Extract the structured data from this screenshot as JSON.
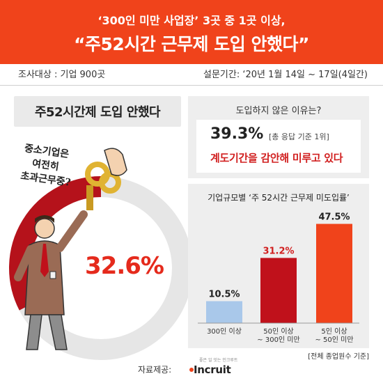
{
  "header": {
    "subtitle": "‘300인 미만 사업장’ 3곳 중 1곳 이상,",
    "title": "“주52시간 근무제 도입 안했다”"
  },
  "meta": {
    "target": "조사대상 : 기업 900곳",
    "period": "설문기간: ‘20년 1월 14일 ~ 17일(4일간)"
  },
  "left": {
    "title": "주52시간제 도입 안했다",
    "handwriting": [
      "중소기업은",
      "여전히",
      "초과근무중?"
    ]
  },
  "reason": {
    "label": "도입하지 않은 이유는?",
    "pct": "39.3%",
    "note": "[총 응답 기준 1위]",
    "text": "계도기간을 감안해 미루고 있다"
  },
  "footnote": "[전체 종업원수 기준]",
  "source": {
    "label": "자료제공:",
    "logo_tag": "좋은 일 잇는 인크루트",
    "logo_word": "Incruit"
  },
  "chart_data": [
    {
      "type": "pie",
      "title": "주52시간제 도입 안했다",
      "values": [
        32.6,
        67.4
      ],
      "value_label": "32.6%",
      "colors": [
        "#b5121b",
        "#e6e6e6"
      ]
    },
    {
      "type": "bar",
      "title": "기업규모별 ‘주 52시간 근무제 미도입률’",
      "categories": [
        [
          "300인 이상"
        ],
        [
          "50인 이상",
          "~ 300인 미만"
        ],
        [
          "5인 이상",
          "~ 50인 미만"
        ]
      ],
      "values": [
        10.5,
        31.2,
        47.5
      ],
      "value_labels": [
        "10.5%",
        "31.2%",
        "47.5%"
      ],
      "value_label_colors": [
        "#222222",
        "#d11f1f",
        "#222222"
      ],
      "colors": [
        "#a9c8ea",
        "#c0111b",
        "#f0431b"
      ],
      "ylim": [
        0,
        50
      ]
    }
  ]
}
